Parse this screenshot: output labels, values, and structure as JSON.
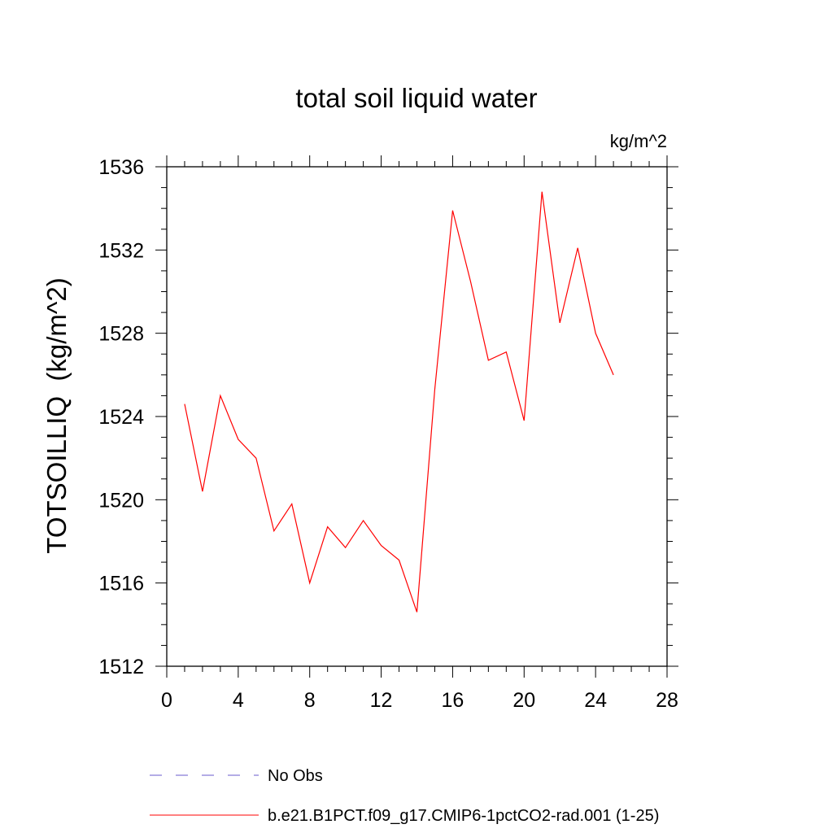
{
  "chart_data": {
    "type": "line",
    "title": "total soil liquid water",
    "units_label": "kg/m^2",
    "ylabel": "TOTSOILLIQ  (kg/m^2)",
    "xlabel": "",
    "xlim": [
      0,
      28
    ],
    "ylim": [
      1512,
      1536
    ],
    "x_ticks": [
      0,
      4,
      8,
      12,
      16,
      20,
      24,
      28
    ],
    "y_ticks": [
      1512,
      1516,
      1520,
      1524,
      1528,
      1532,
      1536
    ],
    "grid": false,
    "legend_position": "bottom",
    "series": [
      {
        "name": "b.e21.B1PCT.f09_g17.CMIP6-1pctCO2-rad.001 (1-25)",
        "color": "#ff0000",
        "style": "solid",
        "x": [
          1,
          2,
          3,
          4,
          5,
          6,
          7,
          8,
          9,
          10,
          11,
          12,
          13,
          14,
          15,
          16,
          17,
          18,
          19,
          20,
          21,
          22,
          23,
          24,
          25
        ],
        "values": [
          1524.6,
          1520.4,
          1525.0,
          1522.9,
          1522.0,
          1518.5,
          1519.8,
          1516.0,
          1518.7,
          1517.7,
          1519.0,
          1517.8,
          1517.1,
          1514.6,
          1525.3,
          1533.9,
          1530.5,
          1526.7,
          1527.1,
          1523.8,
          1534.8,
          1528.5,
          1532.1,
          1528.0,
          1526.0
        ]
      },
      {
        "name": "No Obs",
        "color": "#6a5acd",
        "style": "dashed",
        "x": [],
        "values": []
      }
    ]
  }
}
